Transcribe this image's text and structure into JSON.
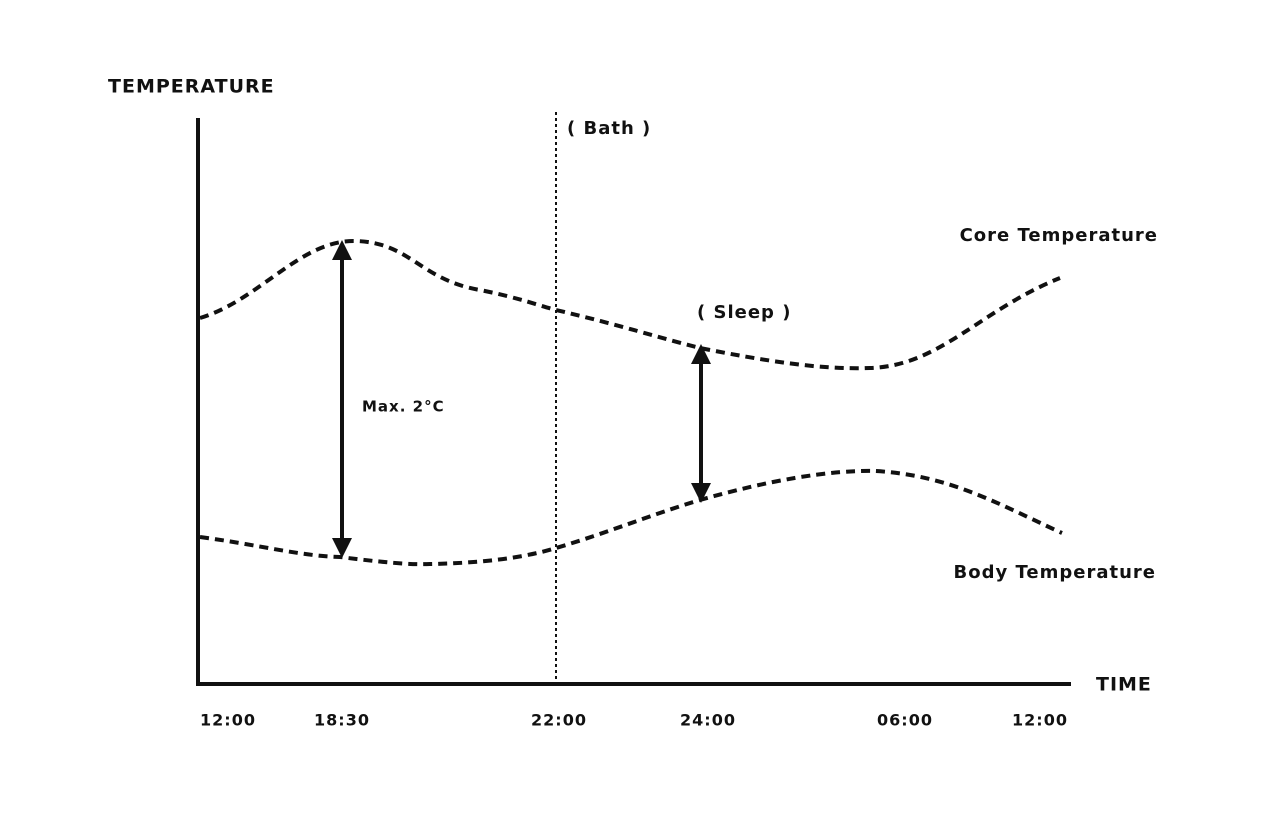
{
  "y_axis_label": "TEMPERATURE",
  "x_axis_label": "TIME",
  "x_tick_labels": [
    "12:00",
    "18:30",
    "22:00",
    "24:00",
    "06:00",
    "12:00"
  ],
  "annotations": {
    "bath": "( Bath )",
    "sleep": "( Sleep )",
    "max_difference": "Max. 2°C"
  },
  "curves": {
    "core": "Core Temperature",
    "body": "Body Temperature"
  }
}
